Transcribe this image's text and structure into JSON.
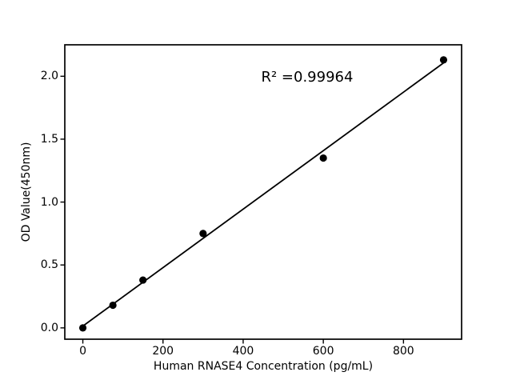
{
  "chart_data": {
    "type": "scatter",
    "title": "",
    "xlabel": "Human RNASE4 Concentration (pg/mL)",
    "ylabel": "OD Value(450nm)",
    "annotation": {
      "text": "R² =0.99964",
      "r_squared": 0.99964,
      "x": 445,
      "y": 2.05
    },
    "x": [
      0,
      75,
      150,
      300,
      600,
      900
    ],
    "y": [
      0.0,
      0.18,
      0.38,
      0.75,
      1.35,
      2.13
    ],
    "trendline": {
      "x1": 0,
      "y1": 0.014,
      "x2": 900,
      "y2": 2.106
    },
    "xlim": [
      -45,
      945
    ],
    "ylim": [
      -0.09,
      2.25
    ],
    "xticks": {
      "values": [
        0,
        200,
        400,
        600,
        800
      ],
      "labels": [
        "0",
        "200",
        "400",
        "600",
        "800"
      ]
    },
    "yticks": {
      "values": [
        0,
        0.5,
        1,
        1.5,
        2
      ],
      "labels": [
        "0.0",
        "0.5",
        "1.0",
        "1.5",
        "2.0"
      ]
    },
    "grid": false,
    "legend": null,
    "colors": {
      "marker": "#000000",
      "line": "#000000",
      "spine": "#000000",
      "text": "#000000",
      "background": "#ffffff"
    },
    "marker": {
      "shape": "circle",
      "radius": 4.6
    }
  }
}
